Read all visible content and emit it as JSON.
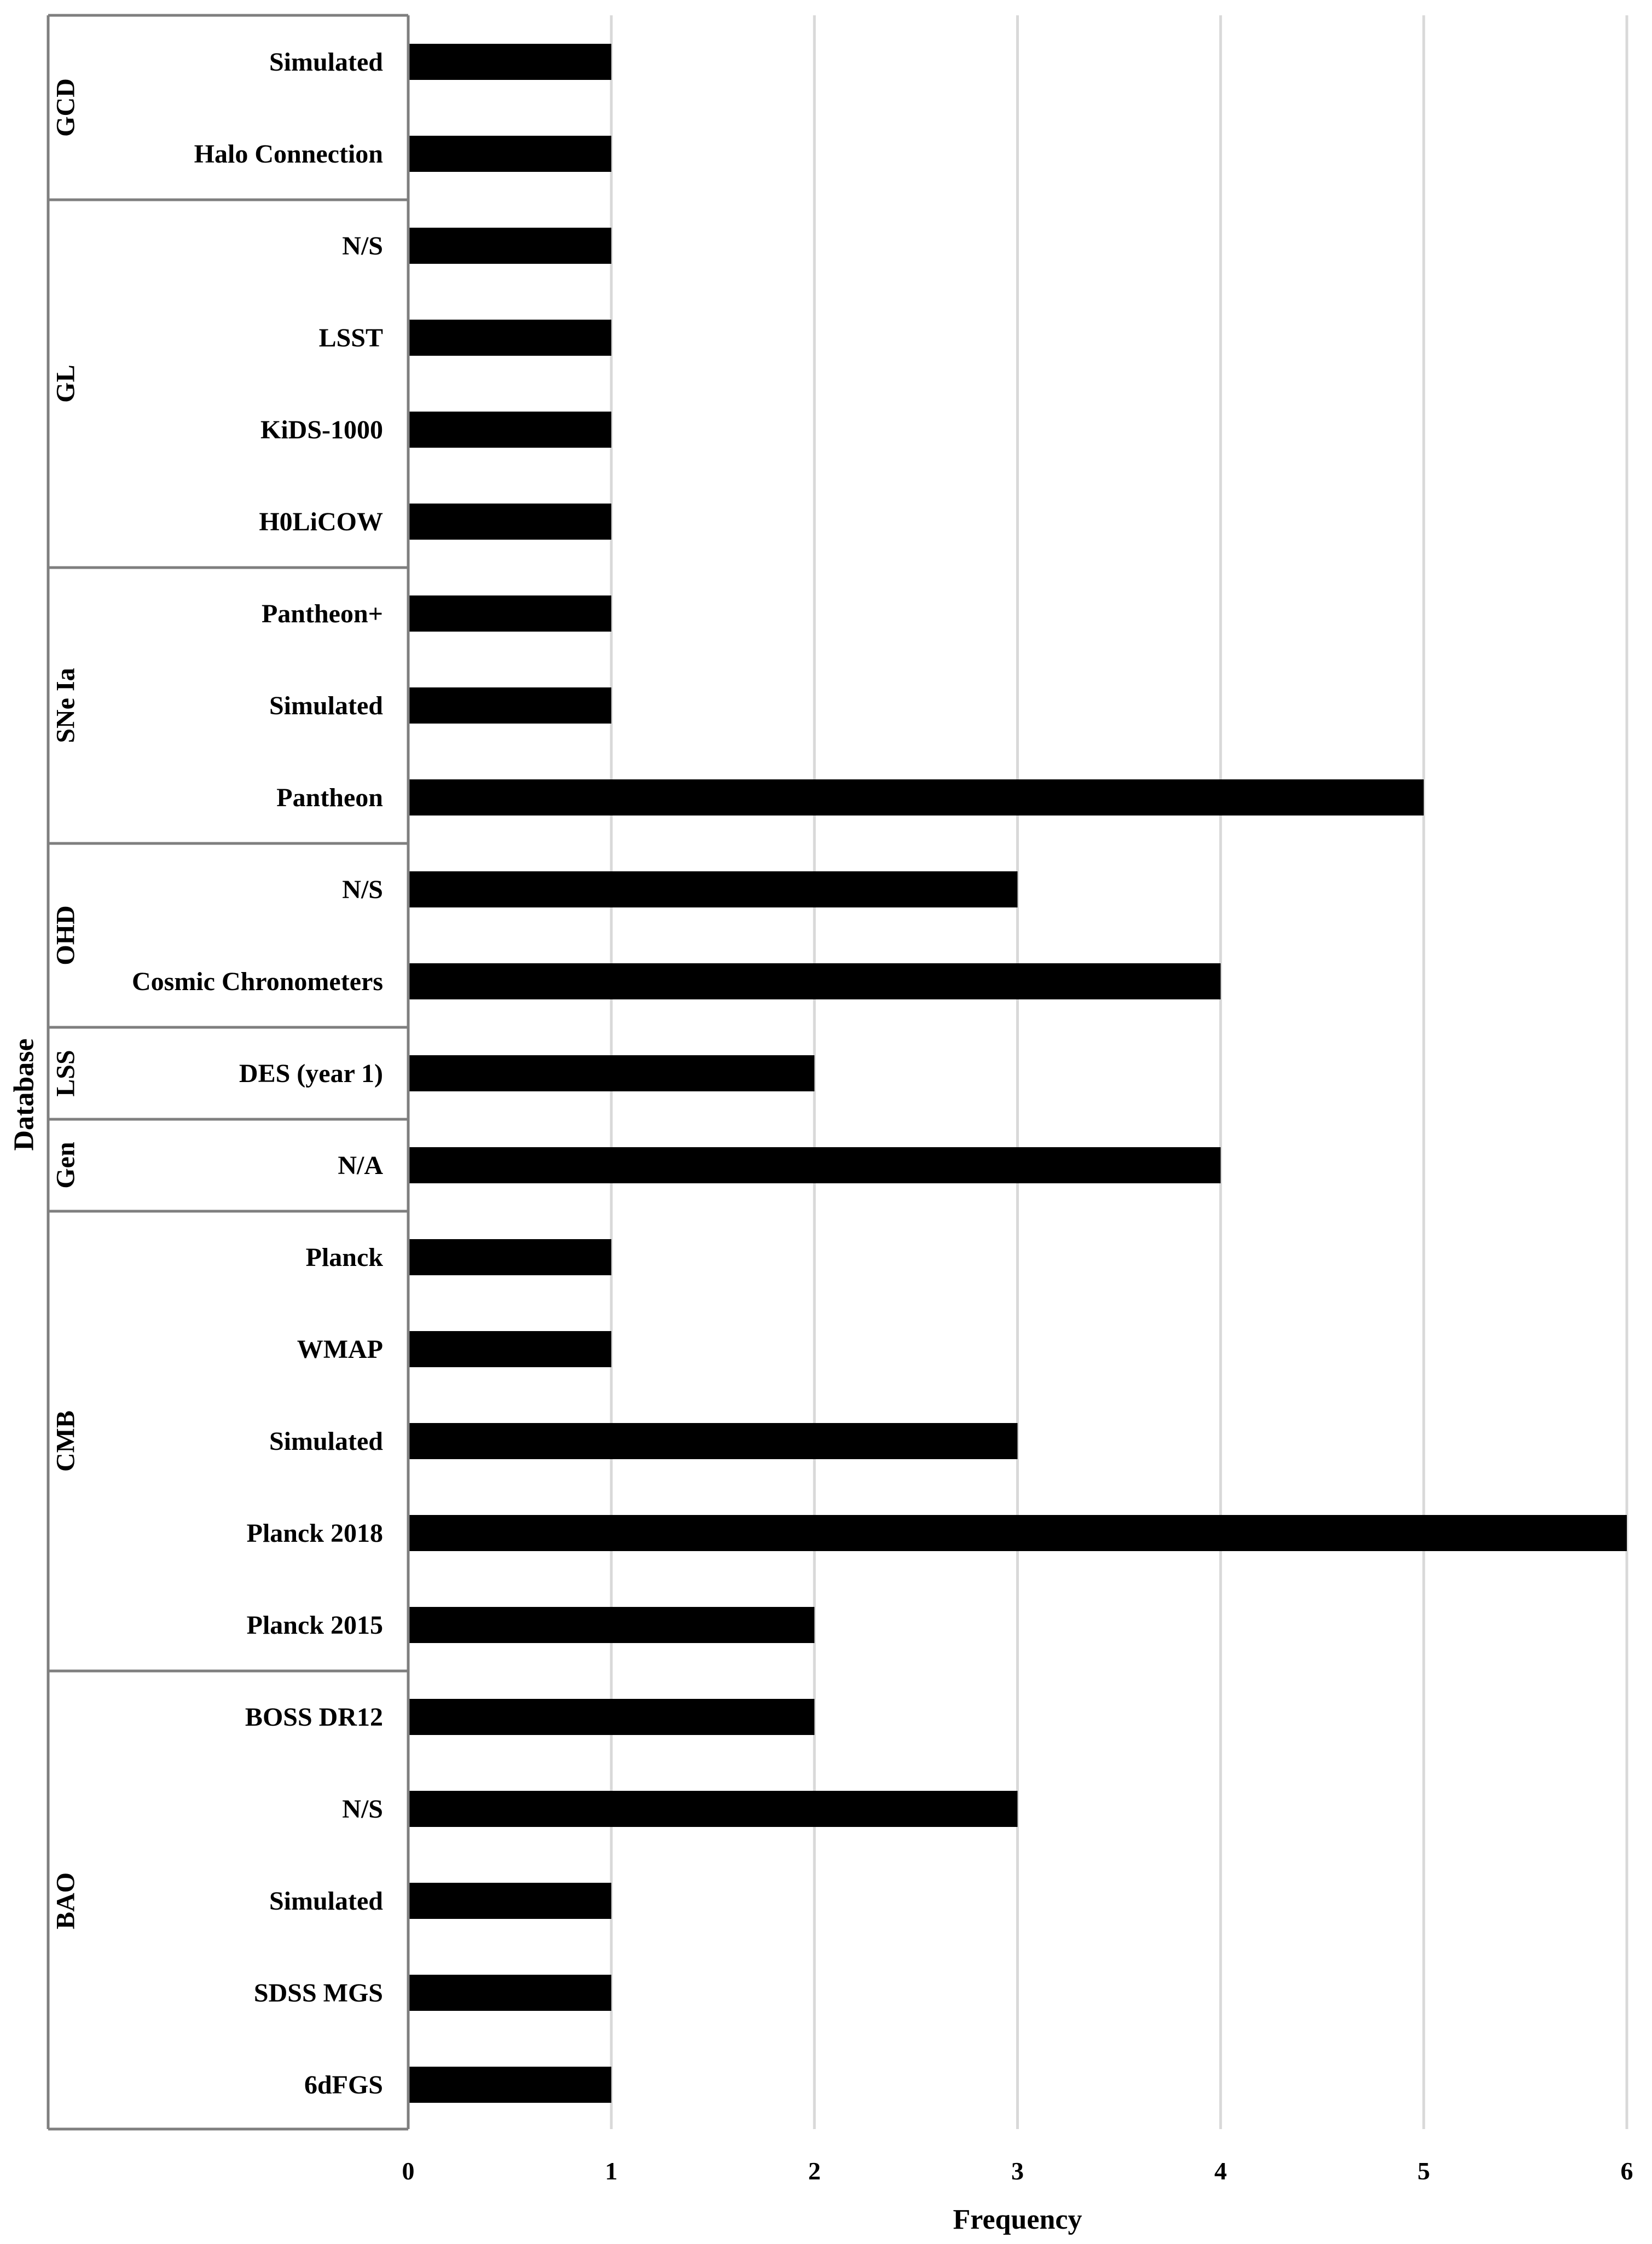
{
  "chart_data": {
    "type": "bar",
    "orientation": "horizontal",
    "xlabel": "Frequency",
    "ylabel": "Database",
    "xlim": [
      0,
      6
    ],
    "xticks": [
      "0",
      "1",
      "2",
      "3",
      "4",
      "5",
      "6"
    ],
    "grid": "vertical",
    "legend": "none",
    "bar_color": "#000000",
    "groups": [
      {
        "name": "GCD",
        "items": [
          {
            "label": "Simulated",
            "value": 1
          },
          {
            "label": "Halo Connection",
            "value": 1
          }
        ]
      },
      {
        "name": "GL",
        "items": [
          {
            "label": "N/S",
            "value": 1
          },
          {
            "label": "LSST",
            "value": 1
          },
          {
            "label": "KiDS-1000",
            "value": 1
          },
          {
            "label": "H0LiCOW",
            "value": 1
          }
        ]
      },
      {
        "name": "SNe Ia",
        "items": [
          {
            "label": "Pantheon+",
            "value": 1
          },
          {
            "label": "Simulated",
            "value": 1
          },
          {
            "label": "Pantheon",
            "value": 5
          }
        ]
      },
      {
        "name": "OHD",
        "items": [
          {
            "label": "N/S",
            "value": 3
          },
          {
            "label": "Cosmic Chronometers",
            "value": 4
          }
        ]
      },
      {
        "name": "LSS",
        "items": [
          {
            "label": "DES (year 1)",
            "value": 2
          }
        ]
      },
      {
        "name": "Gen",
        "items": [
          {
            "label": "N/A",
            "value": 4
          }
        ]
      },
      {
        "name": "CMB",
        "items": [
          {
            "label": "Planck",
            "value": 1
          },
          {
            "label": "WMAP",
            "value": 1
          },
          {
            "label": "Simulated",
            "value": 3
          },
          {
            "label": "Planck 2018",
            "value": 6
          },
          {
            "label": "Planck 2015",
            "value": 2
          }
        ]
      },
      {
        "name": "BAO",
        "items": [
          {
            "label": "BOSS DR12",
            "value": 2
          },
          {
            "label": "N/S",
            "value": 3
          },
          {
            "label": "Simulated",
            "value": 1
          },
          {
            "label": "SDSS MGS",
            "value": 1
          },
          {
            "label": "6dFGS",
            "value": 1
          }
        ]
      }
    ]
  }
}
